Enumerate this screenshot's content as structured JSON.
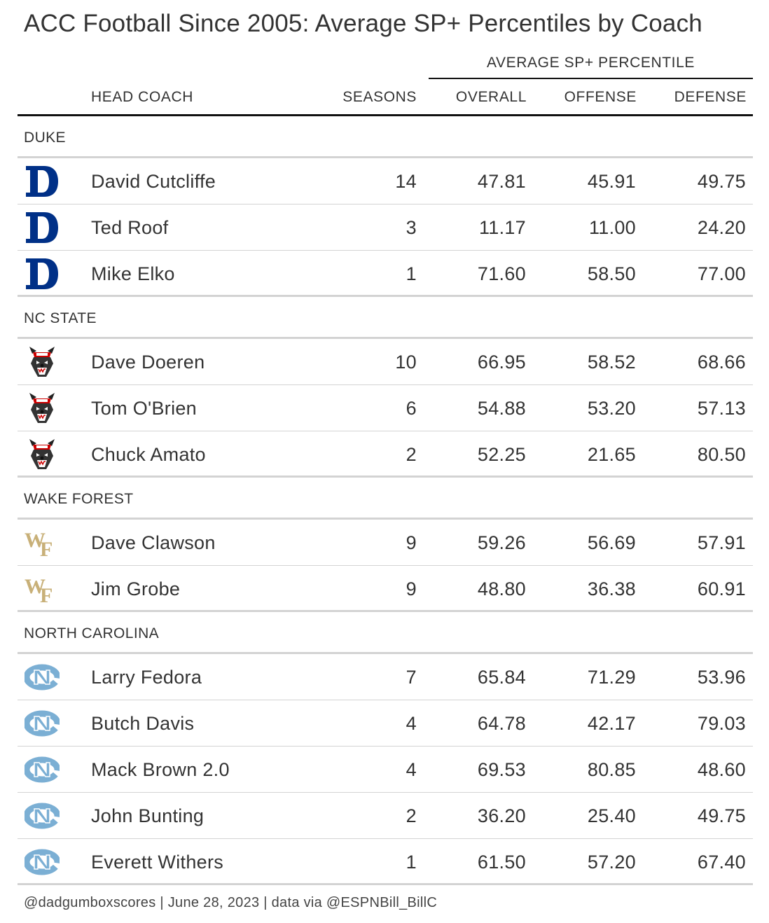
{
  "title": "ACC Football Since 2005: Average SP+ Percentiles by Coach",
  "spanner_label": "AVERAGE SP+ PERCENTILE",
  "columns": {
    "coach": "HEAD COACH",
    "seasons": "SEASONS",
    "overall": "OVERALL",
    "offense": "OFFENSE",
    "defense": "DEFENSE"
  },
  "footer": "@dadgumboxscores | June 28, 2023 | data via @ESPNBill_BillC",
  "colors": {
    "duke": "#003087",
    "ncstate_red": "#cc0000",
    "wake_gold": "#c8b078",
    "unc_blue": "#7BAFD4",
    "rule_dark": "#111111",
    "rule_light": "#d3d3d3"
  },
  "chart_data": {
    "type": "table",
    "groups": [
      {
        "name": "DUKE",
        "logo_icon": "duke-d-logo-icon",
        "rows": [
          {
            "coach": "David Cutcliffe",
            "seasons": "14",
            "overall": "47.81",
            "offense": "45.91",
            "defense": "49.75"
          },
          {
            "coach": "Ted Roof",
            "seasons": "3",
            "overall": "11.17",
            "offense": "11.00",
            "defense": "24.20"
          },
          {
            "coach": "Mike Elko",
            "seasons": "1",
            "overall": "71.60",
            "offense": "58.50",
            "defense": "77.00"
          }
        ]
      },
      {
        "name": "NC STATE",
        "logo_icon": "nc-state-wolf-logo-icon",
        "rows": [
          {
            "coach": "Dave Doeren",
            "seasons": "10",
            "overall": "66.95",
            "offense": "58.52",
            "defense": "68.66"
          },
          {
            "coach": "Tom O'Brien",
            "seasons": "6",
            "overall": "54.88",
            "offense": "53.20",
            "defense": "57.13"
          },
          {
            "coach": "Chuck Amato",
            "seasons": "2",
            "overall": "52.25",
            "offense": "21.65",
            "defense": "80.50"
          }
        ]
      },
      {
        "name": "WAKE FOREST",
        "logo_icon": "wake-forest-wf-logo-icon",
        "rows": [
          {
            "coach": "Dave Clawson",
            "seasons": "9",
            "overall": "59.26",
            "offense": "56.69",
            "defense": "57.91"
          },
          {
            "coach": "Jim Grobe",
            "seasons": "9",
            "overall": "48.80",
            "offense": "36.38",
            "defense": "60.91"
          }
        ]
      },
      {
        "name": "NORTH CAROLINA",
        "logo_icon": "unc-nc-logo-icon",
        "rows": [
          {
            "coach": "Larry Fedora",
            "seasons": "7",
            "overall": "65.84",
            "offense": "71.29",
            "defense": "53.96"
          },
          {
            "coach": "Butch Davis",
            "seasons": "4",
            "overall": "64.78",
            "offense": "42.17",
            "defense": "79.03"
          },
          {
            "coach": "Mack Brown 2.0",
            "seasons": "4",
            "overall": "69.53",
            "offense": "80.85",
            "defense": "48.60"
          },
          {
            "coach": "John Bunting",
            "seasons": "2",
            "overall": "36.20",
            "offense": "25.40",
            "defense": "49.75"
          },
          {
            "coach": "Everett Withers",
            "seasons": "1",
            "overall": "61.50",
            "offense": "57.20",
            "defense": "67.40"
          }
        ]
      }
    ]
  }
}
